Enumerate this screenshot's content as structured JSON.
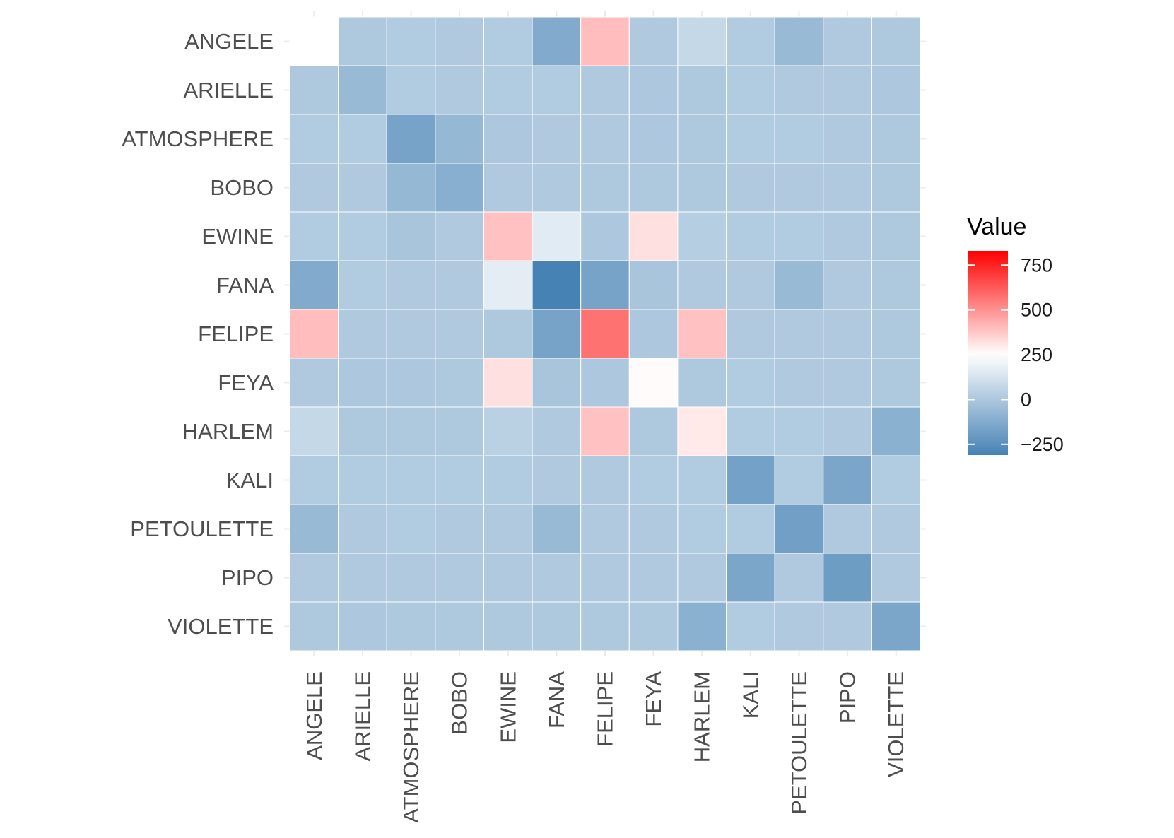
{
  "chart_data": {
    "type": "heatmap",
    "title": "",
    "xlabel": "",
    "ylabel": "",
    "rows": [
      "ANGELE",
      "ARIELLE",
      "ATMOSPHERE",
      "BOBO",
      "EWINE",
      "FANA",
      "FELIPE",
      "FEYA",
      "HARLEM",
      "KALI",
      "PETOULETTE",
      "PIPO",
      "VIOLETTE"
    ],
    "columns": [
      "ANGELE",
      "ARIELLE",
      "ATMOSPHERE",
      "BOBO",
      "EWINE",
      "FANA",
      "FELIPE",
      "FEYA",
      "HARLEM",
      "KALI",
      "PETOULETTE",
      "PIPO",
      "VIOLETTE"
    ],
    "values": [
      [
        250,
        5,
        15,
        10,
        15,
        -130,
        400,
        10,
        75,
        15,
        -60,
        10,
        5
      ],
      [
        5,
        -60,
        15,
        10,
        15,
        15,
        10,
        0,
        5,
        15,
        10,
        10,
        0
      ],
      [
        15,
        15,
        -160,
        -70,
        0,
        10,
        10,
        0,
        5,
        15,
        15,
        10,
        5
      ],
      [
        10,
        10,
        -70,
        -110,
        10,
        10,
        5,
        5,
        5,
        10,
        10,
        10,
        5
      ],
      [
        15,
        15,
        -10,
        10,
        390,
        160,
        0,
        320,
        30,
        15,
        15,
        10,
        5
      ],
      [
        -130,
        15,
        10,
        10,
        170,
        -310,
        -160,
        -10,
        10,
        10,
        -60,
        10,
        5
      ],
      [
        400,
        10,
        10,
        10,
        5,
        -160,
        570,
        0,
        390,
        10,
        10,
        10,
        5
      ],
      [
        10,
        0,
        0,
        5,
        320,
        -10,
        0,
        260,
        5,
        15,
        10,
        10,
        5
      ],
      [
        75,
        5,
        5,
        5,
        40,
        10,
        390,
        5,
        300,
        15,
        15,
        10,
        -100
      ],
      [
        15,
        15,
        15,
        15,
        15,
        10,
        10,
        15,
        15,
        -170,
        15,
        -150,
        15
      ],
      [
        -60,
        10,
        15,
        10,
        10,
        -60,
        10,
        10,
        15,
        15,
        -180,
        10,
        10
      ],
      [
        10,
        10,
        10,
        10,
        10,
        10,
        10,
        10,
        10,
        -150,
        10,
        -190,
        10
      ],
      [
        5,
        0,
        5,
        5,
        5,
        5,
        5,
        5,
        -100,
        15,
        10,
        10,
        -150
      ]
    ],
    "color_scale": {
      "low": "#4682b4",
      "mid": "#ffffff",
      "high": "#ff0000",
      "midpoint": 250,
      "limits": [
        -310,
        830
      ]
    },
    "legend": {
      "title": "Value",
      "ticks": [
        750,
        500,
        250,
        0,
        -250
      ],
      "tick_labels": [
        "750",
        "500",
        "250",
        "0",
        "−250"
      ],
      "placement": "right"
    },
    "grid": true
  }
}
